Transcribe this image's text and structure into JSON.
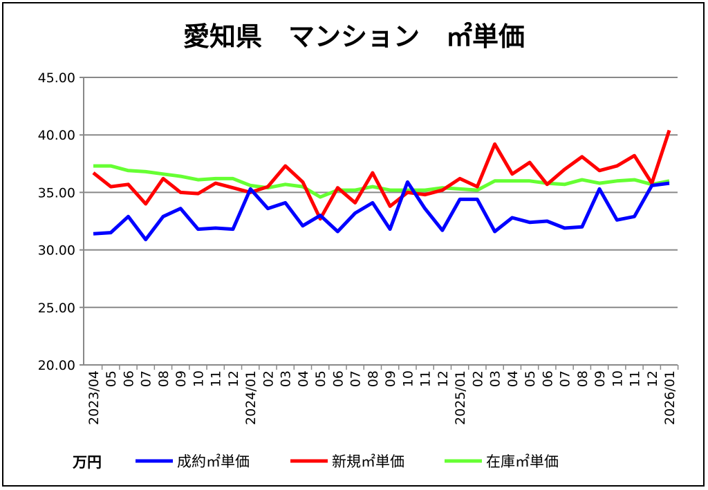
{
  "chart_data": {
    "type": "line",
    "title": "愛知県　マンション　㎡単価",
    "ylabel": "万円",
    "xlabel": "",
    "ylim": [
      20,
      45
    ],
    "yticks": [
      "20.00",
      "25.00",
      "30.00",
      "35.00",
      "40.00",
      "45.00"
    ],
    "grid": true,
    "legend_placement": "bottom",
    "x": [
      "2023/04",
      "05",
      "06",
      "07",
      "08",
      "09",
      "10",
      "11",
      "12",
      "2024/01",
      "02",
      "03",
      "04",
      "05",
      "06",
      "07",
      "08",
      "09",
      "10",
      "11",
      "12",
      "2025/01",
      "02",
      "03",
      "04",
      "05",
      "06",
      "07",
      "08",
      "09",
      "10",
      "11",
      "12",
      "2026/01"
    ],
    "series": [
      {
        "name": "成約㎡単価",
        "color": "#0000ff",
        "values": [
          31.4,
          31.5,
          32.9,
          30.9,
          32.9,
          33.6,
          31.8,
          31.9,
          31.8,
          35.3,
          33.6,
          34.1,
          32.1,
          33.0,
          31.6,
          33.2,
          34.1,
          31.8,
          35.9,
          33.6,
          31.7,
          34.4,
          34.4,
          31.6,
          32.8,
          32.4,
          32.5,
          31.9,
          32.0,
          35.3,
          32.6,
          32.9,
          35.6,
          35.8
        ]
      },
      {
        "name": "新規㎡単価",
        "color": "#ff0000",
        "values": [
          36.7,
          35.5,
          35.7,
          34.0,
          36.2,
          35.0,
          34.9,
          35.8,
          35.4,
          35.0,
          35.5,
          37.3,
          35.9,
          32.7,
          35.4,
          34.1,
          36.7,
          33.8,
          35.0,
          34.8,
          35.2,
          36.2,
          35.5,
          39.2,
          36.6,
          37.6,
          35.7,
          37.0,
          38.1,
          36.9,
          37.3,
          38.2,
          35.8,
          40.4
        ]
      },
      {
        "name": "在庫㎡単価",
        "color": "#66ff33",
        "values": [
          37.3,
          37.3,
          36.9,
          36.8,
          36.6,
          36.4,
          36.1,
          36.2,
          36.2,
          35.6,
          35.4,
          35.7,
          35.5,
          34.6,
          35.2,
          35.2,
          35.5,
          35.2,
          35.2,
          35.2,
          35.4,
          35.3,
          35.2,
          36.0,
          36.0,
          36.0,
          35.8,
          35.7,
          36.1,
          35.8,
          36.0,
          36.1,
          35.7,
          36.0
        ]
      }
    ]
  }
}
